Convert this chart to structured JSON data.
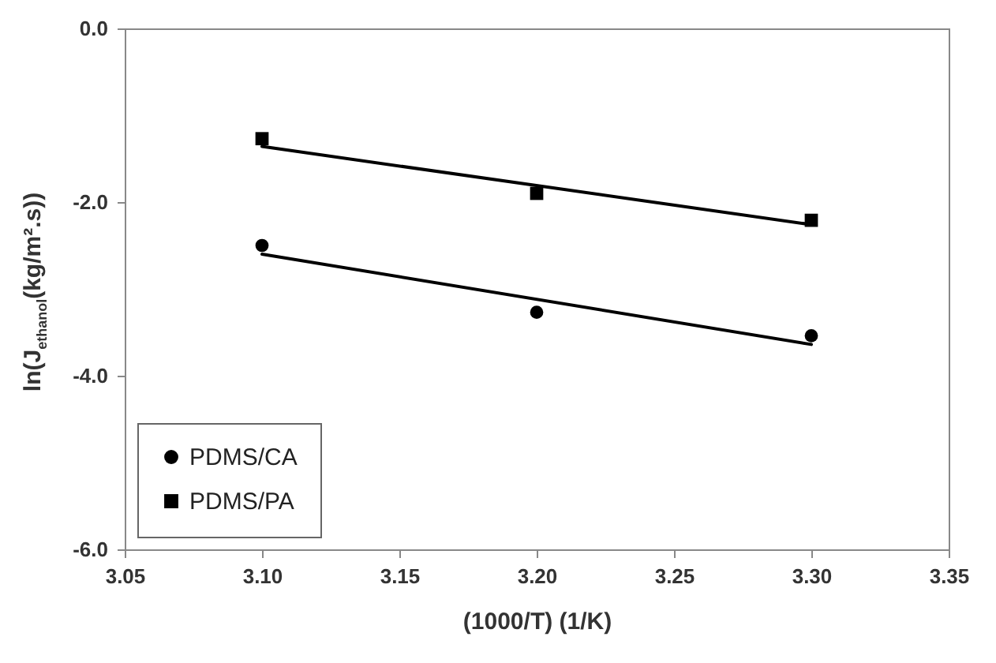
{
  "chart_data": {
    "type": "scatter",
    "xlabel": "(1000/T) (1/K)",
    "ylabel": "ln(J$_{ethanol}$(kg/m².s))",
    "xlim": [
      3.05,
      3.35
    ],
    "ylim": [
      -6,
      0
    ],
    "xticks": [
      3.05,
      {
        "value": 3.1,
        "label": "3.10"
      },
      3.15,
      {
        "value": 3.2,
        "label": "3.20"
      },
      3.25,
      {
        "value": 3.3,
        "label": "3.30"
      },
      3.35
    ],
    "yticks": [
      {
        "value": -6,
        "label": "-6.0"
      },
      {
        "value": -4,
        "label": "-4.0"
      },
      {
        "value": -2,
        "label": "-2.0"
      },
      {
        "value": 0,
        "label": "0.0"
      }
    ],
    "grid": false,
    "legend": "bottom left",
    "series": [
      {
        "name": "PDMS/CA",
        "marker": "circle",
        "color": "#000000",
        "x": [
          3.1,
          3.2,
          3.3
        ],
        "values": [
          -2.5,
          -3.27,
          -3.54
        ]
      },
      {
        "name": "PDMS/PA",
        "marker": "square",
        "color": "#000000",
        "x": [
          3.1,
          3.2,
          3.3
        ],
        "values": [
          -1.27,
          -1.9,
          -2.21
        ]
      },
      {
        "type": "line",
        "color": "#000000",
        "x": [
          3.1,
          3.3
        ],
        "values": [
          -2.6,
          -3.64
        ]
      },
      {
        "type": "line",
        "color": "#000000",
        "x": [
          3.1,
          3.3
        ],
        "values": [
          -1.36,
          -2.26
        ]
      }
    ]
  }
}
